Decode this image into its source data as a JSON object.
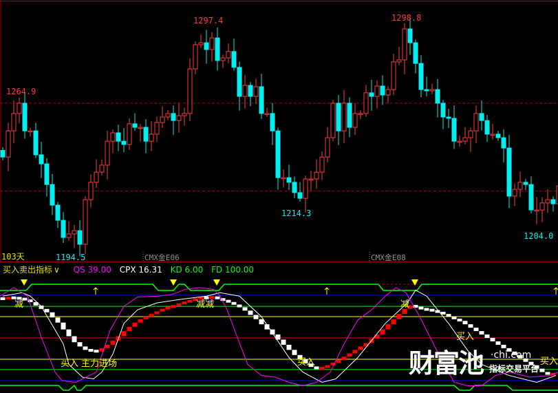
{
  "chart_data": [
    {
      "type": "candlestick",
      "colors": {
        "up": "#ff3b3b",
        "down": "#00f0f0",
        "background": "#000000",
        "reference_line": "#a00000"
      },
      "closes": [
        1238.0,
        1249.9,
        1257.8,
        1262.5,
        1249.9,
        1249.9,
        1239.0,
        1234.9,
        1225.5,
        1216.1,
        1209.2,
        1201.4,
        1203.0,
        1204.5,
        1198.3,
        1218.6,
        1226.5,
        1231.1,
        1234.3,
        1245.2,
        1249.0,
        1245.2,
        1243.7,
        1253.1,
        1251.5,
        1251.5,
        1245.2,
        1248.4,
        1253.7,
        1256.2,
        1257.8,
        1254.6,
        1256.8,
        1257.8,
        1278.1,
        1289.1,
        1290.0,
        1286.9,
        1292.2,
        1281.9,
        1283.1,
        1286.0,
        1278.8,
        1265.6,
        1270.6,
        1265.6,
        1270.0,
        1257.8,
        1257.8,
        1249.9,
        1228.6,
        1228.6,
        1226.5,
        1221.8,
        1219.2,
        1228.0,
        1228.0,
        1231.1,
        1238.0,
        1246.8,
        1262.5,
        1249.9,
        1262.5,
        1251.5,
        1257.8,
        1257.8,
        1267.2,
        1265.6,
        1270.3,
        1266.2,
        1268.7,
        1281.3,
        1282.2,
        1296.3,
        1290.0,
        1280.6,
        1268.7,
        1268.1,
        1268.7,
        1262.5,
        1256.2,
        1255.6,
        1245.2,
        1245.2,
        1246.8,
        1249.9,
        1257.8,
        1254.6,
        1248.4,
        1248.4,
        1246.8,
        1242.1,
        1220.2,
        1223.3,
        1226.5,
        1225.5,
        1213.9,
        1213.9,
        1217.1,
        1218.6,
        1216.7,
        1224.9
      ],
      "reference_lines": [
        1262.5,
        1222.5
      ],
      "labels": {
        "high_1": "1264.9",
        "high_2": "1297.4",
        "high_3": "1298.8",
        "low_1": "1194.5",
        "low_2": "1214.3",
        "low_3": "1204.0",
        "period": "103天",
        "contract_1": "CMX金E06",
        "contract_2": "CMX金E08"
      },
      "y_range": [
        1188,
        1306
      ]
    },
    {
      "type": "line",
      "title": "买入卖出指标",
      "title_chevron": "∨",
      "legend": [
        {
          "name": "QS",
          "value": "39.00",
          "color": "#ff00ff"
        },
        {
          "name": "CPX",
          "value": "16.31",
          "color": "#ffffff"
        },
        {
          "name": "KD",
          "value": "6.00",
          "color": "#00ff00"
        },
        {
          "name": "FD",
          "value": "100.00",
          "color": "#00ff00"
        }
      ],
      "levels": [
        {
          "value": 100,
          "color": "#0000ff"
        },
        {
          "value": 87,
          "color": "#00ff00"
        },
        {
          "value": 75,
          "color": "#ffff00"
        },
        {
          "value": 50,
          "color": "#ff0000"
        },
        {
          "value": 25,
          "color": "#ffff00"
        },
        {
          "value": 13,
          "color": "#00ff00"
        },
        {
          "value": 0,
          "color": "#0000ff"
        }
      ],
      "blocks": [
        96,
        97,
        97,
        96,
        95,
        92,
        88,
        84,
        80,
        74,
        68,
        60,
        52,
        45,
        40,
        36,
        35,
        34,
        38,
        42,
        47,
        52,
        58,
        63,
        68,
        72,
        75,
        78,
        81,
        84,
        86,
        88,
        90,
        92,
        94,
        96,
        97,
        97,
        98,
        96,
        94,
        92,
        89,
        86,
        82,
        77,
        72,
        66,
        60,
        54,
        48,
        42,
        36,
        30,
        25,
        20,
        16,
        14,
        15,
        18,
        21,
        24,
        28,
        32,
        36,
        40,
        44,
        49,
        54,
        60,
        66,
        72,
        78,
        84,
        88,
        86,
        84,
        83,
        82,
        80,
        78,
        75,
        72,
        70,
        66,
        62,
        58,
        54,
        50,
        46,
        42,
        38,
        34,
        30,
        26,
        22,
        18,
        14,
        10,
        7,
        8
      ],
      "white_line": [
        [
          0,
          99
        ],
        [
          3.5,
          103
        ],
        [
          5,
          99
        ],
        [
          7,
          87
        ],
        [
          11,
          43
        ],
        [
          12,
          19
        ],
        [
          14.5,
          4
        ],
        [
          16.5,
          2
        ],
        [
          18,
          10
        ],
        [
          20,
          31
        ],
        [
          22,
          67
        ],
        [
          24.5,
          83
        ],
        [
          28,
          91
        ],
        [
          32,
          95
        ],
        [
          37,
          99
        ],
        [
          39.5,
          103
        ],
        [
          43,
          99
        ],
        [
          47,
          75
        ],
        [
          52,
          27
        ],
        [
          54.5,
          10
        ],
        [
          58,
          -2
        ],
        [
          60.5,
          2
        ],
        [
          64.5,
          27
        ],
        [
          69.5,
          67
        ],
        [
          73.5,
          91
        ],
        [
          75,
          106
        ],
        [
          77,
          99
        ],
        [
          81,
          67
        ],
        [
          84.5,
          35
        ],
        [
          87,
          19
        ],
        [
          92,
          6
        ],
        [
          97,
          -2
        ],
        [
          100.5,
          6
        ]
      ],
      "magenta_line": [
        [
          -0.5,
          99
        ],
        [
          2,
          109
        ],
        [
          4.5,
          99
        ],
        [
          5.75,
          75
        ],
        [
          7,
          51
        ],
        [
          9.5,
          10
        ],
        [
          10.75,
          0
        ],
        [
          13.25,
          -2
        ],
        [
          14.5,
          2
        ],
        [
          17,
          10
        ],
        [
          19.5,
          59
        ],
        [
          22,
          87
        ],
        [
          24.5,
          98
        ],
        [
          28.25,
          99
        ],
        [
          30.75,
          101
        ],
        [
          33.25,
          107
        ],
        [
          35.75,
          109
        ],
        [
          38.25,
          107
        ],
        [
          39.5,
          99
        ],
        [
          40.75,
          83
        ],
        [
          42.6,
          51
        ],
        [
          44.5,
          19
        ],
        [
          47,
          6
        ],
        [
          49.5,
          4
        ],
        [
          52,
          -2
        ],
        [
          54.5,
          -6
        ],
        [
          57,
          -2
        ],
        [
          59.5,
          10
        ],
        [
          62,
          43
        ],
        [
          64.5,
          71
        ],
        [
          67,
          83
        ],
        [
          69.5,
          99
        ],
        [
          71.4,
          109
        ],
        [
          73.25,
          103
        ],
        [
          75.75,
          75
        ],
        [
          77,
          59
        ],
        [
          79.5,
          27
        ],
        [
          82,
          -2
        ],
        [
          84.5,
          -6
        ],
        [
          87,
          -6
        ],
        [
          89.5,
          6
        ],
        [
          92,
          10
        ],
        [
          95.75,
          4
        ],
        [
          99.5,
          6
        ],
        [
          100.9,
          10
        ]
      ],
      "signals": {
        "reduce": "减",
        "reduce_double": "减减",
        "buy": "买入",
        "main_force": "主力进场"
      }
    }
  ],
  "watermark": {
    "brand": "财富池",
    "domain": "·chi.com",
    "tagline": "指标交易平台"
  }
}
